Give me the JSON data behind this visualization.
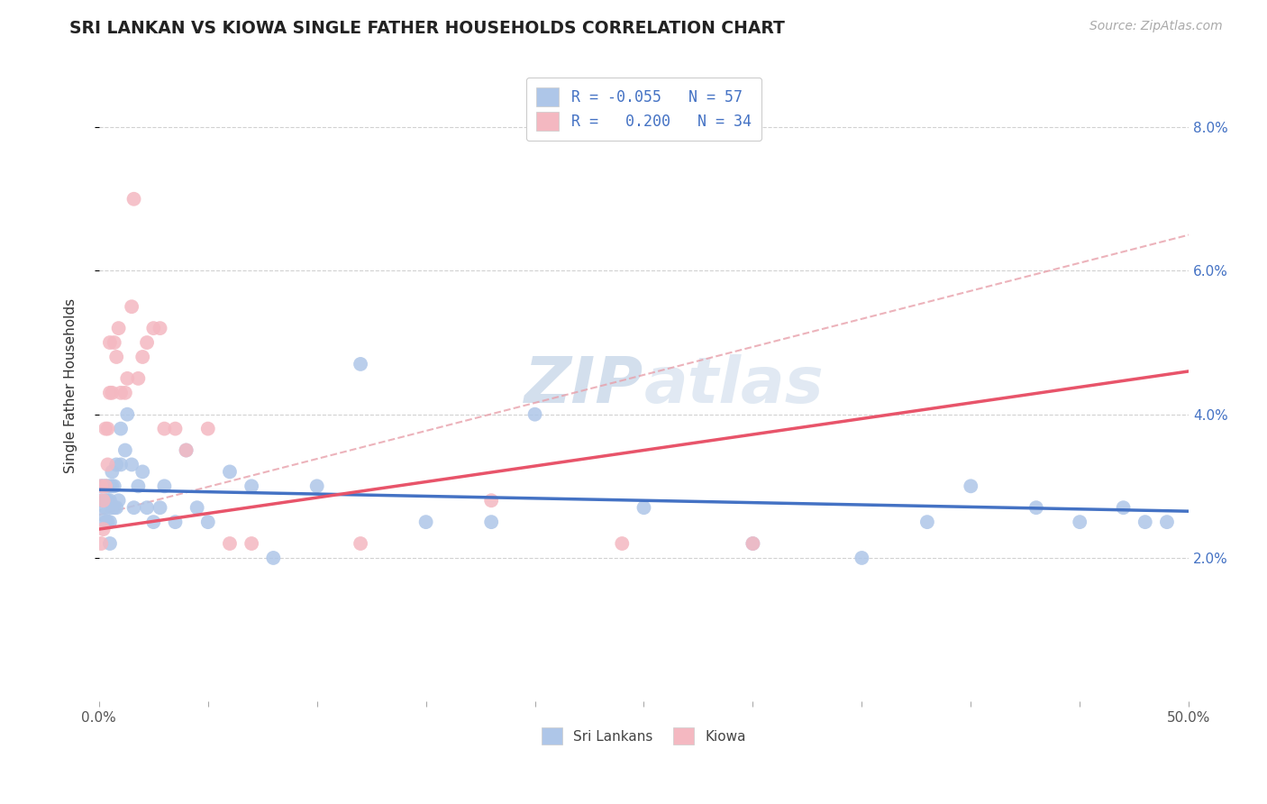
{
  "title": "SRI LANKAN VS KIOWA SINGLE FATHER HOUSEHOLDS CORRELATION CHART",
  "source": "Source: ZipAtlas.com",
  "ylabel": "Single Father Households",
  "watermark": "ZIPatlas",
  "xlim": [
    0.0,
    0.5
  ],
  "ylim": [
    0.0,
    0.088
  ],
  "sri_lankan_color": "#aec6e8",
  "kiowa_color": "#f4b8c1",
  "sri_lankan_line_color": "#4472c4",
  "kiowa_line_color": "#e8546a",
  "trend_line_color": "#e8a0aa",
  "background_color": "#ffffff",
  "grid_color": "#cccccc",
  "legend_blue_color": "#4472c4",
  "legend_entries": [
    {
      "color": "#aec6e8",
      "R": "-0.055",
      "N": "57",
      "label": "Sri Lankans"
    },
    {
      "color": "#f4b8c1",
      "R": " 0.200",
      "N": "34",
      "label": "Kiowa"
    }
  ],
  "sri_lankans_x": [
    0.001,
    0.001,
    0.002,
    0.002,
    0.003,
    0.003,
    0.003,
    0.003,
    0.004,
    0.004,
    0.004,
    0.005,
    0.005,
    0.005,
    0.005,
    0.006,
    0.006,
    0.006,
    0.007,
    0.007,
    0.008,
    0.008,
    0.009,
    0.01,
    0.01,
    0.012,
    0.013,
    0.015,
    0.016,
    0.018,
    0.02,
    0.022,
    0.025,
    0.028,
    0.03,
    0.035,
    0.04,
    0.045,
    0.05,
    0.06,
    0.07,
    0.08,
    0.1,
    0.12,
    0.15,
    0.18,
    0.2,
    0.25,
    0.3,
    0.35,
    0.38,
    0.4,
    0.43,
    0.45,
    0.47,
    0.48,
    0.49
  ],
  "sri_lankans_y": [
    0.03,
    0.028,
    0.03,
    0.026,
    0.03,
    0.028,
    0.025,
    0.027,
    0.03,
    0.028,
    0.025,
    0.03,
    0.028,
    0.025,
    0.022,
    0.032,
    0.03,
    0.027,
    0.03,
    0.027,
    0.033,
    0.027,
    0.028,
    0.033,
    0.038,
    0.035,
    0.04,
    0.033,
    0.027,
    0.03,
    0.032,
    0.027,
    0.025,
    0.027,
    0.03,
    0.025,
    0.035,
    0.027,
    0.025,
    0.032,
    0.03,
    0.02,
    0.03,
    0.047,
    0.025,
    0.025,
    0.04,
    0.027,
    0.022,
    0.02,
    0.025,
    0.03,
    0.027,
    0.025,
    0.027,
    0.025,
    0.025
  ],
  "kiowa_x": [
    0.001,
    0.001,
    0.002,
    0.002,
    0.003,
    0.003,
    0.004,
    0.004,
    0.005,
    0.005,
    0.006,
    0.007,
    0.008,
    0.009,
    0.01,
    0.012,
    0.013,
    0.015,
    0.016,
    0.018,
    0.02,
    0.022,
    0.025,
    0.028,
    0.03,
    0.035,
    0.04,
    0.05,
    0.06,
    0.07,
    0.12,
    0.18,
    0.24,
    0.3
  ],
  "kiowa_y": [
    0.03,
    0.022,
    0.028,
    0.024,
    0.038,
    0.03,
    0.038,
    0.033,
    0.05,
    0.043,
    0.043,
    0.05,
    0.048,
    0.052,
    0.043,
    0.043,
    0.045,
    0.055,
    0.07,
    0.045,
    0.048,
    0.05,
    0.052,
    0.052,
    0.038,
    0.038,
    0.035,
    0.038,
    0.022,
    0.022,
    0.022,
    0.028,
    0.022,
    0.022
  ],
  "sl_line_start_y": 0.0295,
  "sl_line_end_y": 0.0265,
  "kiowa_line_start_y": 0.024,
  "kiowa_line_end_y": 0.046,
  "trend_line_start_x": 0.0,
  "trend_line_start_y": 0.026,
  "trend_line_end_x": 0.5,
  "trend_line_end_y": 0.065
}
